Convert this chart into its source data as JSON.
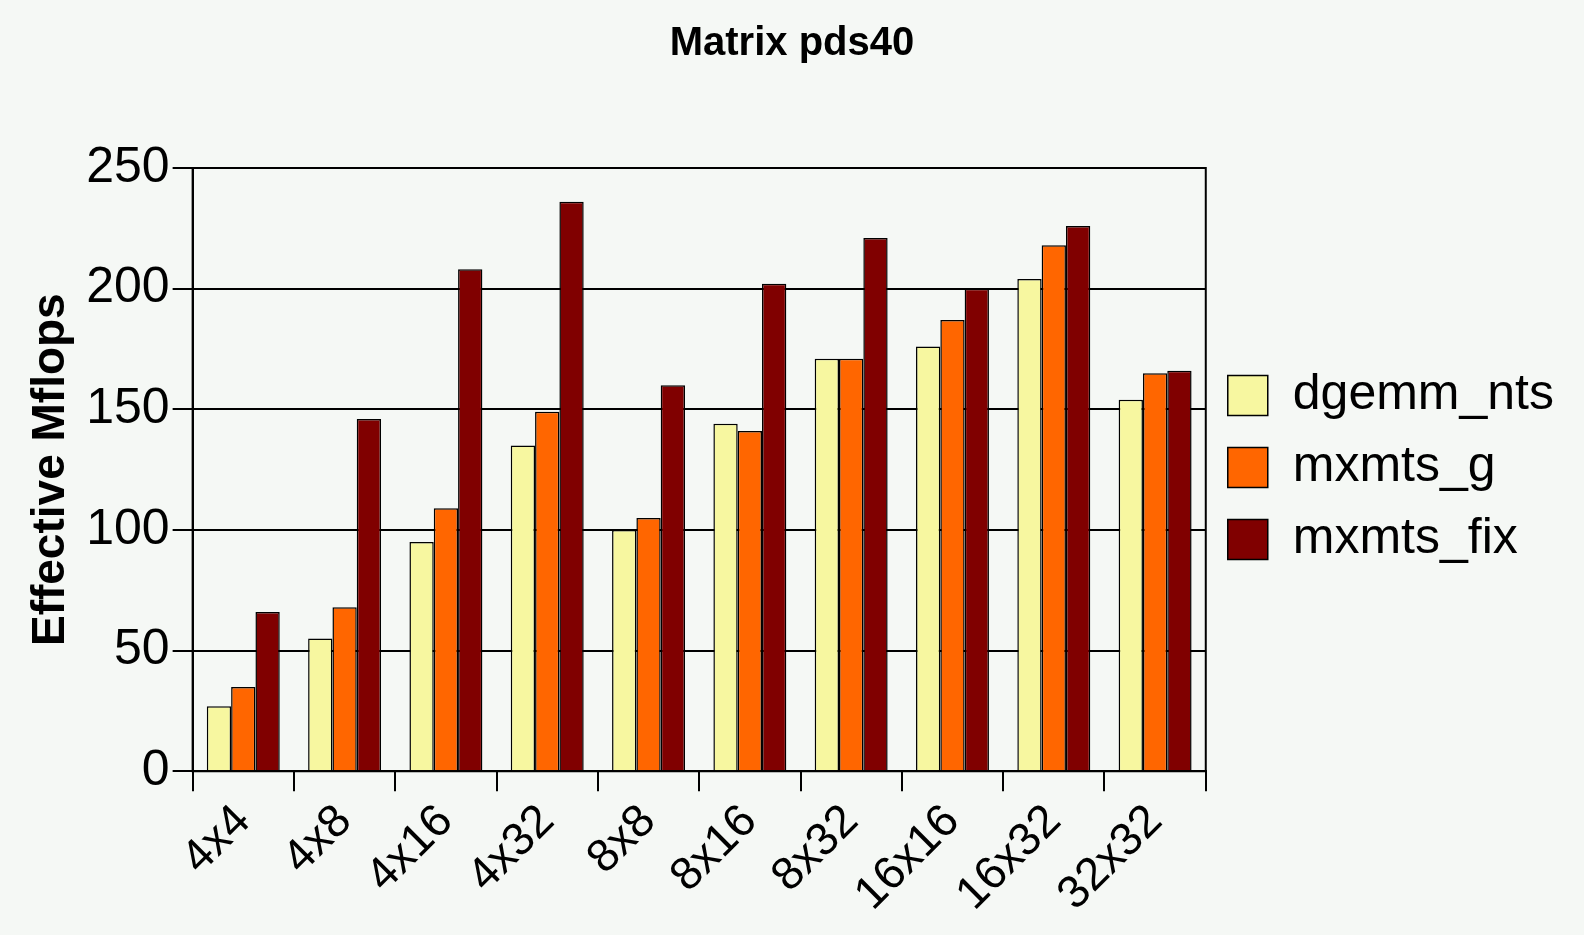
{
  "chart_data": {
    "type": "bar",
    "title": "Matrix pds40",
    "ylabel": "Effective Mflops",
    "categories": [
      "4x4",
      "4x8",
      "4x16",
      "4x32",
      "8x8",
      "8x16",
      "8x32",
      "16x16",
      "16x32",
      "32x32"
    ],
    "series": [
      {
        "name": "dgemm_nts",
        "color": "#f7f7a0",
        "values": [
          27,
          55,
          95,
          135,
          100,
          144,
          171,
          176,
          204,
          154
        ]
      },
      {
        "name": "mxmts_g",
        "color": "#ff6600",
        "values": [
          35,
          68,
          109,
          149,
          105,
          141,
          171,
          187,
          218,
          165
        ]
      },
      {
        "name": "mxmts_fix",
        "color": "#800000",
        "values": [
          66,
          146,
          208,
          236,
          160,
          202,
          221,
          200,
          226,
          166
        ]
      }
    ],
    "ylim": [
      0,
      250
    ],
    "yticks": [
      0,
      50,
      100,
      150,
      200,
      250
    ],
    "grid": "y",
    "legend": "right"
  }
}
